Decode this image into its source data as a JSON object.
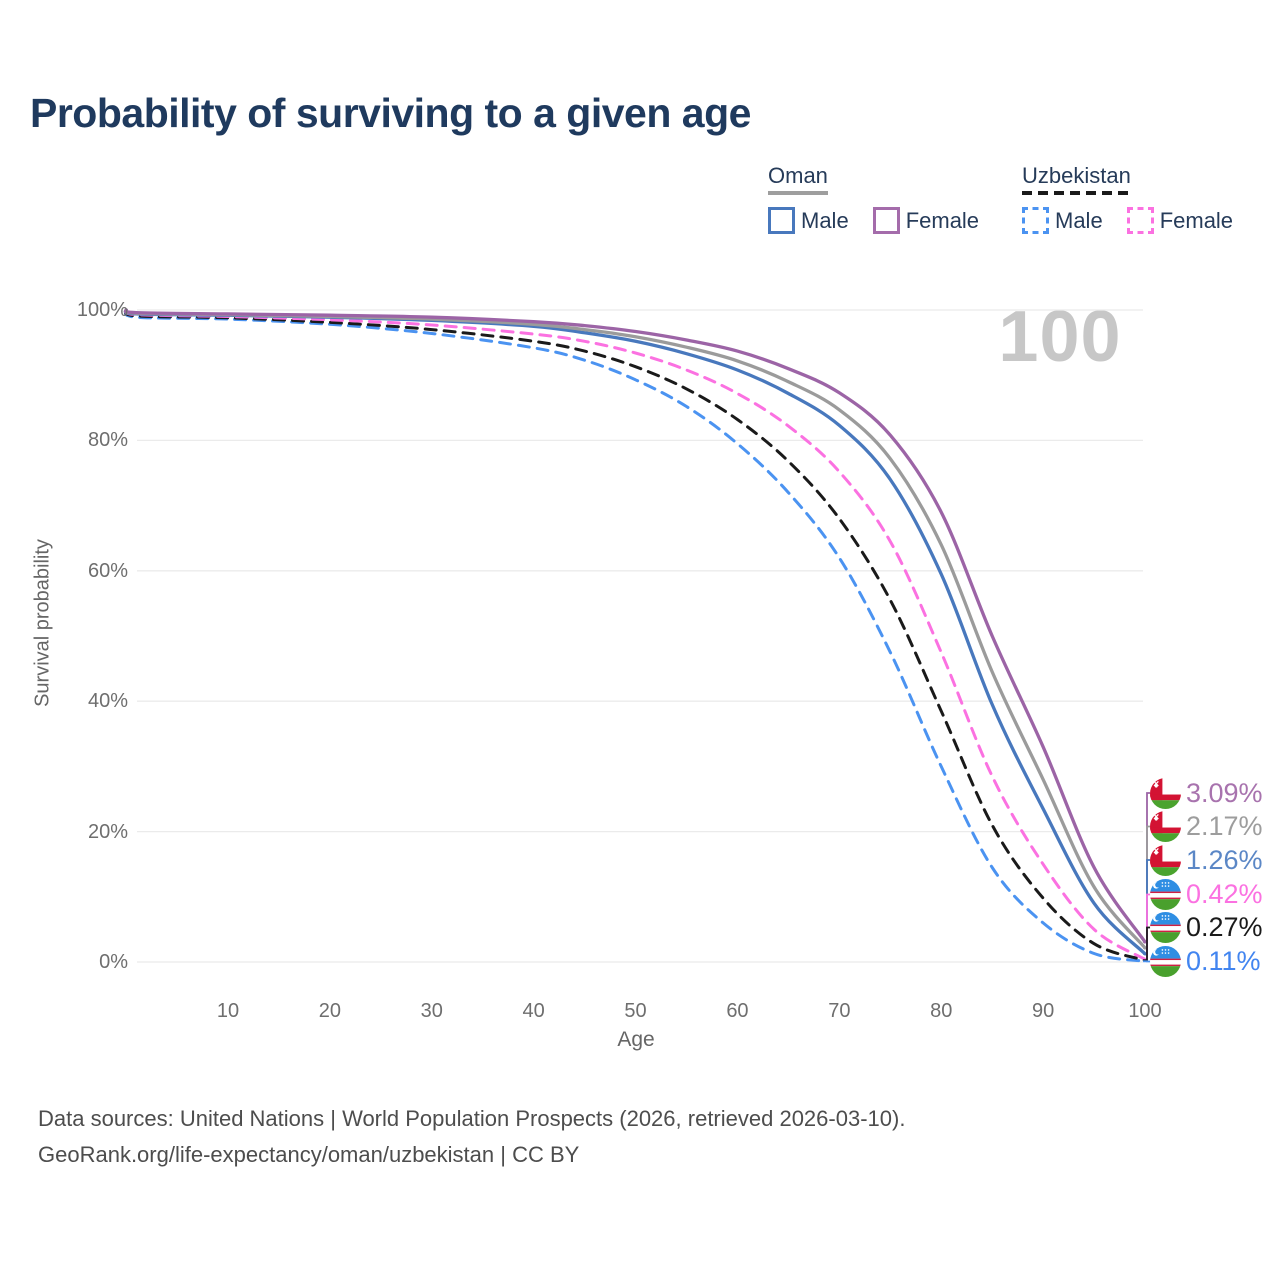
{
  "title": "Probability of surviving to a given age",
  "watermark": "100",
  "legend": {
    "groups": [
      {
        "country": "Oman",
        "line_style": "solid",
        "underline_color": "#9e9e9e",
        "items": [
          {
            "label": "Male",
            "color": "#4878bd"
          },
          {
            "label": "Female",
            "color": "#a46cab"
          }
        ]
      },
      {
        "country": "Uzbekistan",
        "line_style": "dashed",
        "underline_color": "#1a1a1a",
        "items": [
          {
            "label": "Male",
            "color": "#4b93f1"
          },
          {
            "label": "Female",
            "color": "#fb71e1"
          }
        ]
      }
    ]
  },
  "chart_data": {
    "type": "line",
    "title": "Probability of surviving to a given age",
    "xlabel": "Age",
    "ylabel": "Survival probability",
    "xlim": [
      0,
      100
    ],
    "ylim": [
      0,
      100
    ],
    "grid": "horizontal",
    "legend_position": "top-right",
    "x_ticks": [
      "10",
      "20",
      "30",
      "40",
      "50",
      "60",
      "70",
      "80",
      "90",
      "100"
    ],
    "y_ticks": [
      "100%",
      "80%",
      "60%",
      "40%",
      "20%",
      "0%"
    ],
    "annotation": "100",
    "ages": [
      0,
      1,
      10,
      20,
      30,
      40,
      45,
      50,
      55,
      60,
      65,
      70,
      75,
      80,
      85,
      90,
      95,
      100
    ],
    "series": [
      {
        "name": "Oman Female",
        "country": "Oman",
        "sex": "Female",
        "style": "solid",
        "color": "#9c64a6",
        "flag": "oman",
        "end_value_label": "3.09%",
        "end_label_color": "#a873ae",
        "values": [
          100,
          99.6,
          99.4,
          99.2,
          98.9,
          98.2,
          97.6,
          96.7,
          95.4,
          93.7,
          91.0,
          87.3,
          80.8,
          69.0,
          50.0,
          33.0,
          14.5,
          3.09
        ]
      },
      {
        "name": "Oman",
        "country": "Oman",
        "sex": "",
        "style": "solid",
        "color": "#9b9b9b",
        "flag": "oman",
        "end_value_label": "2.17%",
        "end_label_color": "#9d9d9d",
        "values": [
          100,
          99.5,
          99.3,
          99.0,
          98.6,
          97.8,
          97.0,
          95.9,
          94.3,
          92.2,
          89.0,
          84.7,
          77.2,
          64.0,
          44.5,
          28.0,
          11.5,
          2.17
        ]
      },
      {
        "name": "Oman Male",
        "country": "Oman",
        "sex": "Male",
        "style": "solid",
        "color": "#4878bd",
        "flag": "oman",
        "end_value_label": "1.26%",
        "end_label_color": "#5b87c6",
        "values": [
          100,
          99.4,
          99.2,
          98.9,
          98.4,
          97.5,
          96.5,
          95.2,
          93.3,
          90.8,
          87.2,
          82.3,
          74.0,
          59.5,
          39.5,
          23.5,
          9.0,
          1.26
        ]
      },
      {
        "name": "Uzbekistan Female",
        "country": "Uzbekistan",
        "sex": "Female",
        "style": "dashed",
        "color": "#fb71e1",
        "flag": "uzbekistan",
        "end_value_label": "0.42%",
        "end_label_color": "#fb71e1",
        "values": [
          100,
          99.3,
          99.0,
          98.5,
          97.7,
          96.3,
          95.2,
          93.4,
          90.8,
          87.2,
          82.2,
          75.2,
          64.5,
          47.5,
          28.5,
          15.0,
          5.0,
          0.42
        ]
      },
      {
        "name": "Uzbekistan",
        "country": "Uzbekistan",
        "sex": "",
        "style": "dashed",
        "color": "#1a1a1a",
        "flag": "uzbekistan",
        "end_value_label": "0.27%",
        "end_label_color": "#1a1a1a",
        "values": [
          100,
          99.1,
          98.8,
          98.1,
          97.0,
          95.2,
          93.7,
          91.3,
          87.9,
          83.2,
          76.8,
          68.0,
          55.5,
          38.5,
          21.0,
          9.8,
          2.8,
          0.27
        ]
      },
      {
        "name": "Uzbekistan Male",
        "country": "Uzbekistan",
        "sex": "Male",
        "style": "dashed",
        "color": "#4b93f1",
        "flag": "uzbekistan",
        "end_value_label": "0.11%",
        "end_label_color": "#4285f0",
        "values": [
          100,
          98.9,
          98.6,
          97.8,
          96.4,
          94.2,
          92.3,
          89.3,
          85.2,
          79.5,
          72.0,
          62.0,
          47.5,
          30.0,
          14.5,
          6.0,
          1.3,
          0.11
        ]
      }
    ]
  },
  "footer": {
    "line1": "Data sources: United Nations | World Population Prospects (2026, retrieved 2026-03-10).",
    "line2": "GeoRank.org/life-expectancy/oman/uzbekistan | CC BY"
  }
}
